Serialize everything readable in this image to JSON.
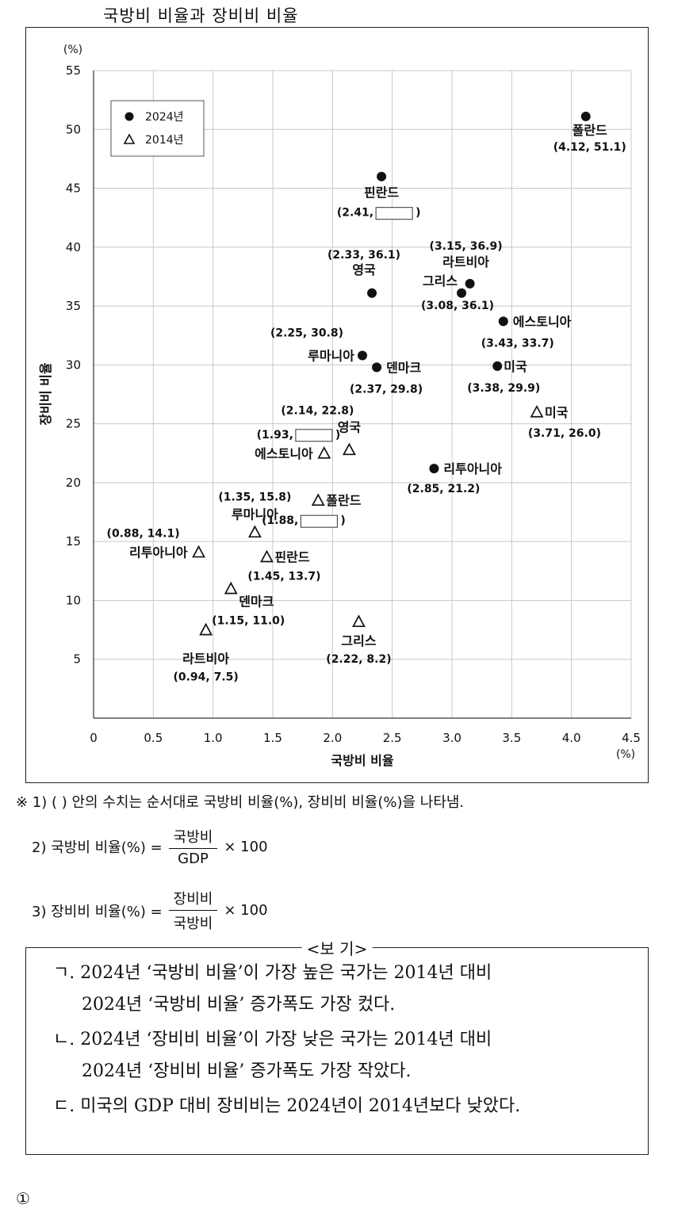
{
  "title": "국방비 비율과 장비비 비율",
  "chart_data": {
    "type": "scatter",
    "xlabel": "국방비 비율",
    "ylabel": "장비비 비율",
    "x_unit": "(%)",
    "y_unit": "(%)",
    "xlim": [
      0,
      4.5
    ],
    "ylim": [
      0,
      55
    ],
    "x_ticks": [
      "0",
      "0.5",
      "1.0",
      "1.5",
      "2.0",
      "2.5",
      "3.0",
      "3.5",
      "4.0",
      "4.5"
    ],
    "y_ticks": [
      "0",
      "5",
      "10",
      "15",
      "20",
      "25",
      "30",
      "35",
      "40",
      "45",
      "50",
      "55"
    ],
    "grid": true,
    "legend_position": "top-left",
    "series": [
      {
        "name": "2024년",
        "marker": "circle",
        "points": [
          {
            "country": "폴란드",
            "x": 4.12,
            "y": 51.1,
            "label": "(4.12, 51.1)"
          },
          {
            "country": "핀란드",
            "x": 2.41,
            "y": 46.0,
            "label": "(2.41, ",
            "blank": true
          },
          {
            "country": "영국",
            "x": 2.33,
            "y": 36.1,
            "label": "(2.33, 36.1)"
          },
          {
            "country": "라트비아",
            "x": 3.15,
            "y": 36.9,
            "label": "(3.15, 36.9)"
          },
          {
            "country": "그리스",
            "x": 3.08,
            "y": 36.1,
            "label": "(3.08, 36.1)"
          },
          {
            "country": "에스토니아",
            "x": 3.43,
            "y": 33.7,
            "label": "(3.43, 33.7)"
          },
          {
            "country": "루마니아",
            "x": 2.25,
            "y": 30.8,
            "label": "(2.25, 30.8)"
          },
          {
            "country": "덴마크",
            "x": 2.37,
            "y": 29.8,
            "label": "(2.37, 29.8)"
          },
          {
            "country": "미국",
            "x": 3.38,
            "y": 29.9,
            "label": "(3.38, 29.9)"
          },
          {
            "country": "리투아니아",
            "x": 2.85,
            "y": 21.2,
            "label": "(2.85, 21.2)"
          }
        ]
      },
      {
        "name": "2014년",
        "marker": "triangle",
        "points": [
          {
            "country": "미국",
            "x": 3.71,
            "y": 26.0,
            "label": "(3.71, 26.0)"
          },
          {
            "country": "영국",
            "x": 2.14,
            "y": 22.8,
            "label": "(2.14, 22.8)"
          },
          {
            "country": "에스토니아",
            "x": 1.93,
            "y": 22.5,
            "label": "(1.93, ",
            "blank": true
          },
          {
            "country": "폴란드",
            "x": 1.88,
            "y": 18.5,
            "label": "(1.88, ",
            "blank": true
          },
          {
            "country": "루마니아",
            "x": 1.35,
            "y": 15.8,
            "label": "(1.35, 15.8)"
          },
          {
            "country": "리투아니아",
            "x": 0.88,
            "y": 14.1,
            "label": "(0.88, 14.1)"
          },
          {
            "country": "핀란드",
            "x": 1.45,
            "y": 13.7,
            "label": "(1.45, 13.7)"
          },
          {
            "country": "덴마크",
            "x": 1.15,
            "y": 11.0,
            "label": "(1.15, 11.0)"
          },
          {
            "country": "라트비아",
            "x": 0.94,
            "y": 7.5,
            "label": "(0.94, 7.5)"
          },
          {
            "country": "그리스",
            "x": 2.22,
            "y": 8.2,
            "label": "(2.22, 8.2)"
          }
        ]
      }
    ]
  },
  "notes": {
    "n1": "※ 1) (     ) 안의 수치는 순서대로 국방비 비율(%), 장비비 비율(%)을 나타냄.",
    "n2_prefix": "2) 국방비 비율(%) =",
    "n2_num": "국방비",
    "n2_den": "GDP",
    "n2_suffix": "× 100",
    "n3_prefix": "3) 장비비 비율(%) =",
    "n3_num": "장비비",
    "n3_den": "국방비",
    "n3_suffix": "× 100"
  },
  "bogi": {
    "title": "<보   기>",
    "items": [
      {
        "line1": "ㄱ. 2024년 ‘국방비 비율’이 가장 높은 국가는 2014년 대비",
        "line2": "2024년 ‘국방비 비율’ 증가폭도 가장 컸다."
      },
      {
        "line1": "ㄴ. 2024년 ‘장비비 비율’이 가장 낮은 국가는 2014년 대비",
        "line2": "2024년 ‘장비비 비율’ 증가폭도 가장 작았다."
      },
      {
        "line1": "ㄷ. 미국의 GDP 대비 장비비는 2024년이 2014년보다 낮았다.",
        "line2": ""
      }
    ]
  },
  "footer_mark": "①"
}
